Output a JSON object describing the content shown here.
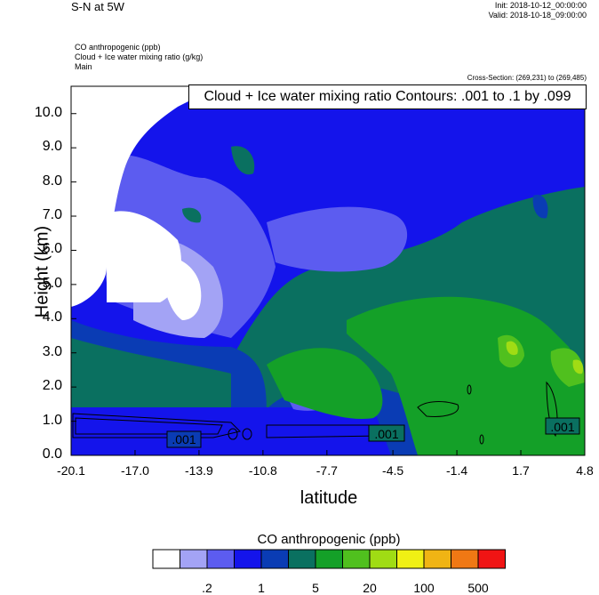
{
  "header": {
    "title": "S-N at 5W",
    "init": "Init: 2018-10-12_00:00:00",
    "valid": "Valid: 2018-10-18_09:00:00",
    "field1": "CO anthropogenic   (ppb)",
    "field2": "Cloud + Ice water mixing ratio   (g/kg)",
    "field3": "Main",
    "cross_section": "Cross-Section: (269,231) to (269,485)",
    "contour_info": "Cloud + Ice water mixing ratio Contours: .001 to .1 by .099"
  },
  "colorbar": {
    "title": "CO anthropogenic  (ppb)",
    "colors": [
      "#ffffff",
      "#a3a3f5",
      "#5c5cf0",
      "#1414eb",
      "#0a3cb4",
      "#0a7060",
      "#14a028",
      "#50c01e",
      "#a0dc14",
      "#f0f014",
      "#f0b414",
      "#f07814",
      "#f01414"
    ],
    "labels": [
      ".2",
      "1",
      "5",
      "20",
      "100",
      "500"
    ]
  },
  "chart_data": {
    "type": "heatmap",
    "title": "",
    "xlabel": "latitude",
    "ylabel": "Height (km)",
    "x_ticks": [
      "-20.1",
      "-17.0",
      "-13.9",
      "-10.8",
      "-7.7",
      "-4.5",
      "-1.4",
      "1.7",
      "4.8"
    ],
    "y_ticks": [
      "0.0",
      "1.0",
      "2.0",
      "3.0",
      "4.0",
      "5.0",
      "6.0",
      "7.0",
      "8.0",
      "9.0",
      "10.0"
    ],
    "xlim": [
      -20.1,
      4.8
    ],
    "ylim": [
      0,
      10.8
    ],
    "contour_labels": [
      ".001",
      ".001",
      ".001"
    ]
  }
}
